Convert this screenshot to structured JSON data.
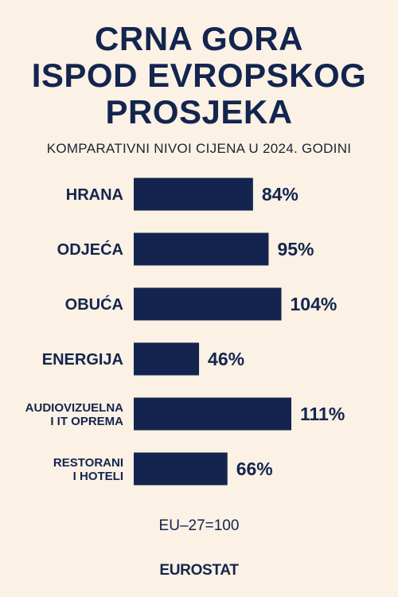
{
  "title_lines": [
    "CRNA GORA",
    "ISPOD EVROPSKOG",
    "PROSJEKA"
  ],
  "chart_data": {
    "type": "bar",
    "orientation": "horizontal",
    "title": "CRNA GORA ISPOD EVROPSKOG PROSJEKA",
    "subtitle": "KOMPARATIVNI NIVOI CIJENA U 2024. GODINI",
    "categories": [
      [
        "HRANA"
      ],
      [
        "ODJEĆA"
      ],
      [
        "OBUĆA"
      ],
      [
        "ENERGIJA"
      ],
      [
        "AUDIOVIZUELNA",
        "I IT OPREMA"
      ],
      [
        "RESTORANI",
        "I HOTELI"
      ]
    ],
    "values": [
      84,
      95,
      104,
      46,
      111,
      66
    ],
    "value_labels": [
      "84%",
      "95%",
      "104%",
      "46%",
      "111%",
      "66%"
    ],
    "unit": "%",
    "xlim": [
      0,
      111
    ],
    "bar_color": "#13254f",
    "grid": false,
    "legend": "none"
  },
  "footnote": "EU–27=100",
  "source": "EUROSTAT",
  "colors": {
    "background": "#fbf1e4",
    "primary": "#13254f"
  }
}
